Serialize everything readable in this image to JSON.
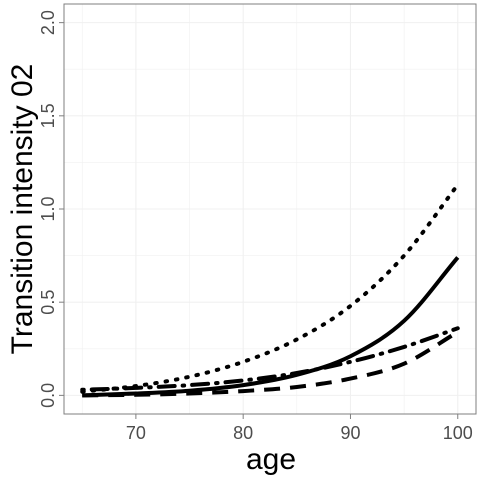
{
  "chart_data": {
    "type": "line",
    "title": "",
    "xlabel": "age",
    "ylabel": "Transition intensity 02",
    "xlim": [
      63.3,
      101.7
    ],
    "ylim": [
      -0.1,
      2.1
    ],
    "x_ticks": [
      70,
      80,
      90,
      100
    ],
    "x_tick_labels": [
      "70",
      "80",
      "90",
      "100"
    ],
    "y_ticks": [
      0.0,
      0.5,
      1.0,
      1.5,
      2.0
    ],
    "y_tick_labels": [
      "0.0",
      "0.5",
      "1.0",
      "1.5",
      "2.0"
    ],
    "grid": true,
    "legend": "none",
    "x": [
      65,
      70,
      75,
      80,
      85,
      90,
      95,
      100
    ],
    "series": [
      {
        "style": "solid",
        "values": [
          0.0,
          0.01,
          0.025,
          0.055,
          0.11,
          0.21,
          0.4,
          0.74
        ]
      },
      {
        "style": "dotted",
        "values": [
          0.02,
          0.05,
          0.1,
          0.18,
          0.3,
          0.48,
          0.75,
          1.13
        ]
      },
      {
        "style": "dashed",
        "values": [
          0.0,
          0.003,
          0.01,
          0.023,
          0.045,
          0.09,
          0.17,
          0.34
        ]
      },
      {
        "style": "dotdash",
        "values": [
          0.03,
          0.04,
          0.055,
          0.08,
          0.12,
          0.18,
          0.26,
          0.36
        ]
      }
    ],
    "colors": {
      "lines": "#000000",
      "grid": "#f0f0f0",
      "panel_border": "#7f7f7f",
      "tick_text": "#4d4d4d"
    }
  }
}
